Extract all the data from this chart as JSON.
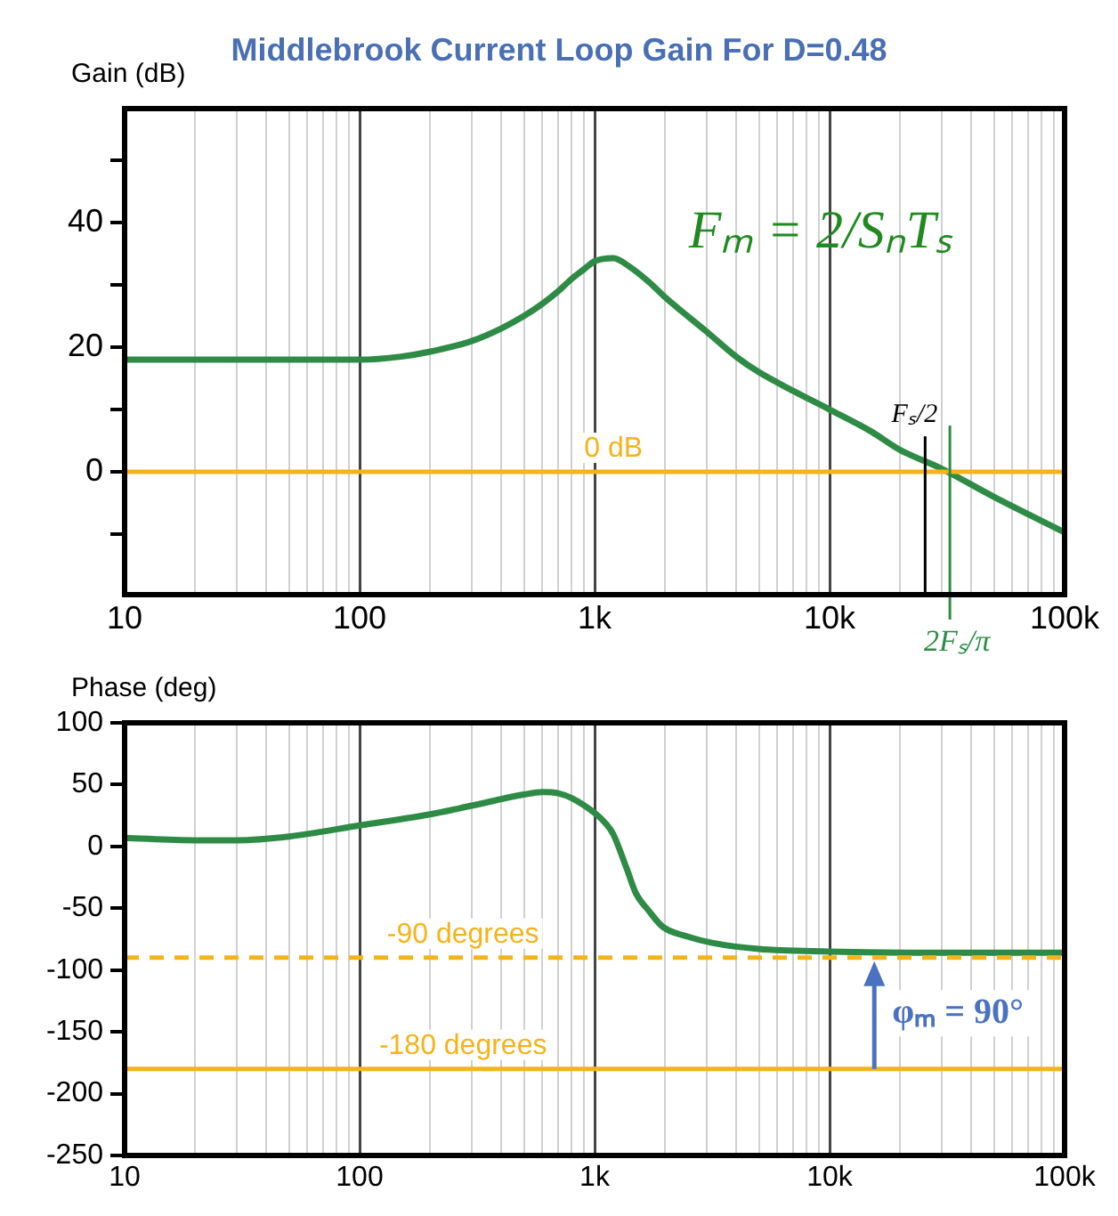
{
  "chart_data": [
    {
      "type": "line",
      "title": "Middlebrook Current Loop Gain For D=0.48",
      "ylabel": "Gain (dB)",
      "log": "x",
      "grid": "x",
      "legend": false,
      "marker": "none",
      "line_style": "solid",
      "xlim": [
        10,
        100000
      ],
      "ylim": [
        -19.7,
        58.3
      ],
      "xticks": [
        {
          "value": 10,
          "label": "10"
        },
        {
          "value": 20,
          "label": null
        },
        {
          "value": 30,
          "label": null
        },
        {
          "value": 40,
          "label": null
        },
        {
          "value": 50,
          "label": null
        },
        {
          "value": 60,
          "label": null
        },
        {
          "value": 70,
          "label": null
        },
        {
          "value": 80,
          "label": null
        },
        {
          "value": 90,
          "label": null
        },
        {
          "value": 100,
          "label": "100"
        },
        {
          "value": 200,
          "label": null
        },
        {
          "value": 300,
          "label": null
        },
        {
          "value": 400,
          "label": null
        },
        {
          "value": 500,
          "label": null
        },
        {
          "value": 600,
          "label": null
        },
        {
          "value": 700,
          "label": null
        },
        {
          "value": 800,
          "label": null
        },
        {
          "value": 900,
          "label": null
        },
        {
          "value": 1000,
          "label": "1k"
        },
        {
          "value": 2000,
          "label": null
        },
        {
          "value": 3000,
          "label": null
        },
        {
          "value": 4000,
          "label": null
        },
        {
          "value": 5000,
          "label": null
        },
        {
          "value": 6000,
          "label": null
        },
        {
          "value": 7000,
          "label": null
        },
        {
          "value": 8000,
          "label": null
        },
        {
          "value": 9000,
          "label": null
        },
        {
          "value": 10000,
          "label": "10k"
        },
        {
          "value": 20000,
          "label": null
        },
        {
          "value": 30000,
          "label": null
        },
        {
          "value": 40000,
          "label": null
        },
        {
          "value": 50000,
          "label": null
        },
        {
          "value": 60000,
          "label": null
        },
        {
          "value": 70000,
          "label": null
        },
        {
          "value": 80000,
          "label": null
        },
        {
          "value": 90000,
          "label": null
        },
        {
          "value": 100000,
          "label": "100k"
        }
      ],
      "yticks": [
        {
          "value": -10,
          "label": null
        },
        0,
        {
          "value": 10,
          "label": null
        },
        20,
        {
          "value": 30,
          "label": null
        },
        40,
        {
          "value": 50,
          "label": null
        }
      ],
      "series": [
        {
          "color": "#2e8b45",
          "x": [
            10,
            50,
            100,
            150,
            200,
            300,
            400,
            500,
            600,
            700,
            800,
            900,
            1000,
            1200,
            1400,
            1700,
            2000,
            3000,
            4000,
            5000,
            7000,
            10000,
            15000,
            20000,
            30000,
            50000,
            100000
          ],
          "values": [
            18,
            18,
            18,
            18.5,
            19.3,
            21,
            23,
            25,
            27,
            29,
            31,
            32.5,
            33.8,
            34.3,
            33,
            30.5,
            28,
            22.5,
            18.5,
            16,
            13,
            10,
            6.5,
            3.5,
            0.5,
            -4,
            -9.7
          ]
        }
      ],
      "ref_lines": [
        {
          "axis": "y",
          "value": 0,
          "label": "0 dB",
          "color": "#f5b31a",
          "line_style": "solid"
        },
        {
          "axis": "x",
          "value": 25500,
          "label": "Fₛ/2",
          "color": "#000000",
          "line_style": "solid"
        },
        {
          "axis": "x",
          "value": 32500,
          "label": "2Fₛ/π",
          "color": "#2e8b45",
          "line_style": "solid"
        }
      ],
      "annotations": [
        "Fₘ = 2/SₙTₛ"
      ]
    },
    {
      "type": "line",
      "ylabel": "Phase (deg)",
      "log": "x",
      "grid": "x",
      "legend": false,
      "marker": "none",
      "line_style": "solid",
      "xlim": [
        10,
        100000
      ],
      "ylim": [
        -250,
        100
      ],
      "xticks": [
        {
          "value": 10,
          "label": "10"
        },
        {
          "value": 20,
          "label": null
        },
        {
          "value": 30,
          "label": null
        },
        {
          "value": 40,
          "label": null
        },
        {
          "value": 50,
          "label": null
        },
        {
          "value": 60,
          "label": null
        },
        {
          "value": 70,
          "label": null
        },
        {
          "value": 80,
          "label": null
        },
        {
          "value": 90,
          "label": null
        },
        {
          "value": 100,
          "label": "100"
        },
        {
          "value": 200,
          "label": null
        },
        {
          "value": 300,
          "label": null
        },
        {
          "value": 400,
          "label": null
        },
        {
          "value": 500,
          "label": null
        },
        {
          "value": 600,
          "label": null
        },
        {
          "value": 700,
          "label": null
        },
        {
          "value": 800,
          "label": null
        },
        {
          "value": 900,
          "label": null
        },
        {
          "value": 1000,
          "label": "1k"
        },
        {
          "value": 2000,
          "label": null
        },
        {
          "value": 3000,
          "label": null
        },
        {
          "value": 4000,
          "label": null
        },
        {
          "value": 5000,
          "label": null
        },
        {
          "value": 6000,
          "label": null
        },
        {
          "value": 7000,
          "label": null
        },
        {
          "value": 8000,
          "label": null
        },
        {
          "value": 9000,
          "label": null
        },
        {
          "value": 10000,
          "label": "10k"
        },
        {
          "value": 20000,
          "label": null
        },
        {
          "value": 30000,
          "label": null
        },
        {
          "value": 40000,
          "label": null
        },
        {
          "value": 50000,
          "label": null
        },
        {
          "value": 60000,
          "label": null
        },
        {
          "value": 70000,
          "label": null
        },
        {
          "value": 80000,
          "label": null
        },
        {
          "value": 90000,
          "label": null
        },
        {
          "value": 100000,
          "label": "100k"
        }
      ],
      "yticks": [
        -250,
        -200,
        -150,
        -100,
        -50,
        0,
        50,
        100
      ],
      "series": [
        {
          "color": "#2e8b45",
          "x": [
            10,
            20,
            30,
            50,
            100,
            200,
            300,
            500,
            600,
            700,
            800,
            1000,
            1110,
            1200,
            1370,
            1500,
            1700,
            1950,
            2500,
            3160,
            5000,
            10000,
            30000,
            100000
          ],
          "values": [
            7,
            5,
            5,
            8,
            17,
            26,
            33,
            42,
            44,
            43,
            39,
            27,
            19,
            10,
            -18,
            -38,
            -52,
            -65,
            -73,
            -78,
            -83,
            -85,
            -86,
            -86
          ]
        }
      ],
      "ref_lines": [
        {
          "axis": "y",
          "value": -90,
          "label": "-90 degrees",
          "color": "#f5b31a",
          "line_style": "dashed"
        },
        {
          "axis": "y",
          "value": -180,
          "label": "-180 degrees",
          "color": "#f5b31a",
          "line_style": "solid"
        }
      ],
      "annotations": [
        {
          "text": "φₘ = 90°",
          "x": 15500,
          "y": -90
        }
      ]
    }
  ]
}
